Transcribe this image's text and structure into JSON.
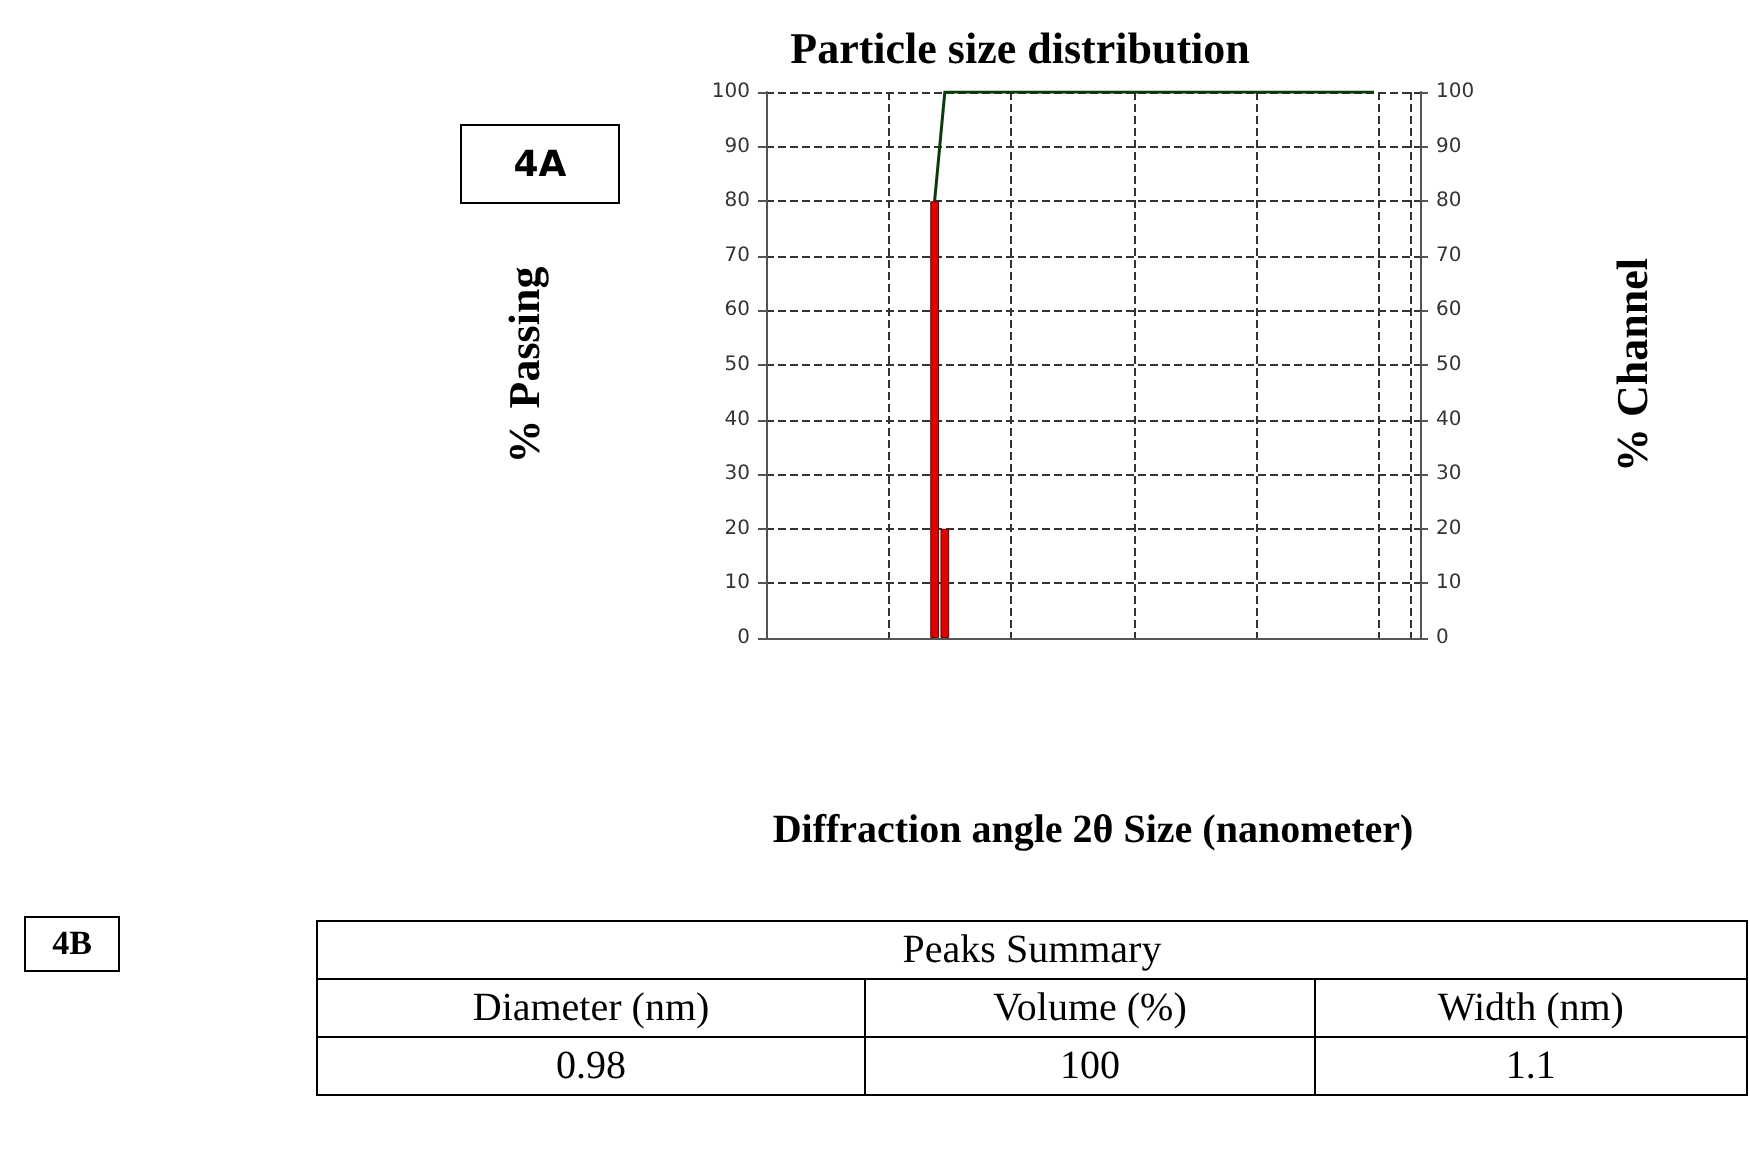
{
  "chart_data": [
    {
      "type": "bar",
      "title": "Particle size distribution",
      "xlabel": "Diffraction angle 2θ Size (nanometer)",
      "ylabel": "% Passing",
      "y2label": "% Channel",
      "annotations": [
        "4A"
      ],
      "categories": [
        null,
        null,
        null,
        null,
        null,
        null,
        null,
        null,
        null,
        null,
        null,
        null,
        null,
        null,
        null,
        null,
        null,
        null,
        null,
        null,
        null,
        null,
        null,
        null,
        null,
        null,
        null,
        null,
        null,
        null,
        null,
        null,
        null,
        null,
        null,
        null,
        null,
        null,
        null,
        null,
        null,
        null,
        null,
        null,
        null,
        null,
        null,
        null,
        null,
        null,
        null,
        null,
        null,
        null,
        null,
        null,
        null,
        null,
        null,
        null,
        null,
        null,
        null,
        null
      ],
      "series": [
        {
          "axis": "y2",
          "color": "#e00000",
          "values": [
            null,
            null,
            null,
            null,
            null,
            null,
            null,
            null,
            null,
            null,
            null,
            null,
            null,
            null,
            null,
            null,
            80,
            20,
            null,
            null,
            null,
            null,
            null,
            null,
            null,
            null,
            null,
            null,
            null,
            null,
            null,
            null,
            null,
            null,
            null,
            null,
            null,
            null,
            null,
            null,
            null,
            null,
            null,
            null,
            null,
            null,
            null,
            null,
            null,
            null,
            null,
            null,
            null,
            null,
            null,
            null,
            null,
            null,
            null,
            null,
            null,
            null,
            null,
            null
          ]
        },
        {
          "type": "line",
          "color": "#0b3a0b",
          "values": [
            null,
            null,
            null,
            null,
            null,
            null,
            null,
            null,
            null,
            null,
            null,
            null,
            null,
            null,
            null,
            null,
            80,
            100,
            100,
            100,
            100,
            100,
            100,
            100,
            100,
            100,
            100,
            100,
            100,
            100,
            100,
            100,
            100,
            100,
            100,
            100,
            100,
            100,
            100,
            100,
            100,
            100,
            100,
            100,
            100,
            100,
            100,
            100,
            100,
            100,
            100,
            100,
            100,
            100,
            100,
            100,
            100,
            100,
            100,
            100,
            null,
            null,
            null,
            null
          ]
        }
      ],
      "ylim": [
        0,
        100
      ],
      "yticks": [
        0,
        10,
        20,
        30,
        40,
        50,
        60,
        70,
        80,
        90,
        100
      ],
      "y2lim": [
        0,
        100
      ],
      "y2ticks": [
        0,
        10,
        20,
        30,
        40,
        50,
        60,
        70,
        80,
        90,
        100
      ],
      "grid": true,
      "marker": "none"
    },
    {
      "type": "other",
      "title": "Peaks Summary",
      "annotations": [
        "4B",
        "Diameter (nm)",
        "Volume (%)",
        "Width (nm)",
        "0.98",
        "100",
        "1.1"
      ]
    }
  ]
}
